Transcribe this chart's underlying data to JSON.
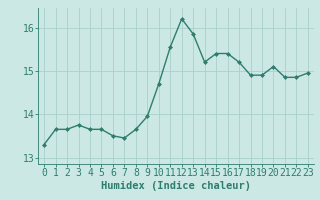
{
  "x": [
    0,
    1,
    2,
    3,
    4,
    5,
    6,
    7,
    8,
    9,
    10,
    11,
    12,
    13,
    14,
    15,
    16,
    17,
    18,
    19,
    20,
    21,
    22,
    23
  ],
  "y": [
    13.3,
    13.65,
    13.65,
    13.75,
    13.65,
    13.65,
    13.5,
    13.45,
    13.65,
    13.95,
    14.7,
    15.55,
    16.2,
    15.85,
    15.2,
    15.4,
    15.4,
    15.2,
    14.9,
    14.9,
    15.1,
    14.85,
    14.85,
    14.95
  ],
  "line_color": "#2e7d6e",
  "marker": "D",
  "marker_size": 2.0,
  "background_color": "#cce8e4",
  "grid_color": "#aacfca",
  "axis_color": "#2e7d6e",
  "xlabel": "Humidex (Indice chaleur)",
  "ylim": [
    12.85,
    16.45
  ],
  "xlim": [
    -0.5,
    23.5
  ],
  "yticks": [
    13,
    14,
    15,
    16
  ],
  "xtick_labels": [
    "0",
    "1",
    "2",
    "3",
    "4",
    "5",
    "6",
    "7",
    "8",
    "9",
    "10",
    "11",
    "12",
    "13",
    "14",
    "15",
    "16",
    "17",
    "18",
    "19",
    "20",
    "21",
    "22",
    "23"
  ],
  "xlabel_fontsize": 7.5,
  "tick_fontsize": 7,
  "linewidth": 1.0
}
